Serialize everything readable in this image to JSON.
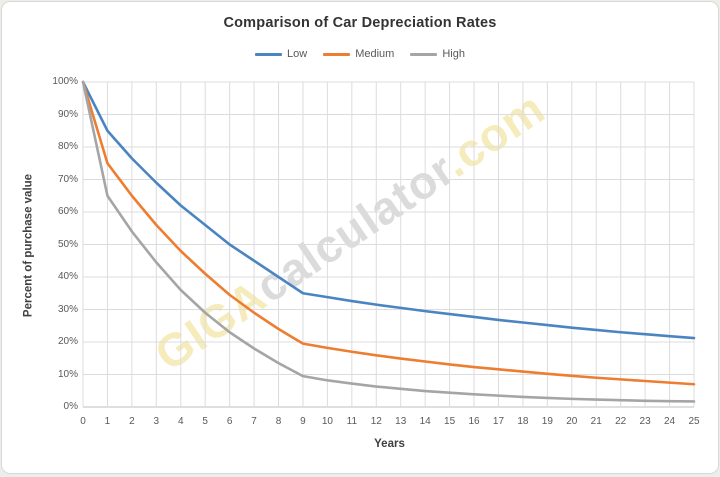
{
  "chart": {
    "title": "Comparison of Car Depreciation Rates",
    "x_axis_title": "Years",
    "y_axis_title": "Percent of purchase value"
  },
  "watermark": {
    "part1": "GIGA",
    "part2": "calculator",
    "part3": ".com"
  },
  "chart_data": {
    "type": "line",
    "title": "Comparison of Car Depreciation Rates",
    "xlabel": "Years",
    "ylabel": "Percent of purchase value",
    "xlim": [
      0,
      25
    ],
    "ylim": [
      0,
      100
    ],
    "grid": true,
    "legend_position": "top",
    "x": [
      0,
      1,
      2,
      3,
      4,
      5,
      6,
      7,
      8,
      9,
      10,
      11,
      12,
      13,
      14,
      15,
      16,
      17,
      18,
      19,
      20,
      21,
      22,
      23,
      24,
      25
    ],
    "x_tick_labels": [
      "0",
      "1",
      "2",
      "3",
      "4",
      "5",
      "6",
      "7",
      "8",
      "9",
      "10",
      "11",
      "12",
      "13",
      "14",
      "15",
      "16",
      "17",
      "18",
      "19",
      "20",
      "21",
      "22",
      "23",
      "24",
      "25"
    ],
    "y_ticks": [
      0,
      10,
      20,
      30,
      40,
      50,
      60,
      70,
      80,
      90,
      100
    ],
    "y_tick_labels": [
      "0%",
      "10%",
      "20%",
      "30%",
      "40%",
      "50%",
      "60%",
      "70%",
      "80%",
      "90%",
      "100%"
    ],
    "series": [
      {
        "name": "Low",
        "color": "#4A85C2",
        "values": [
          100,
          85,
          76.5,
          69,
          62,
          56,
          50,
          45,
          40,
          35,
          33.8,
          32.6,
          31.5,
          30.5,
          29.5,
          28.6,
          27.7,
          26.8,
          26,
          25.2,
          24.4,
          23.7,
          23,
          22.4,
          21.8,
          21.2
        ]
      },
      {
        "name": "Medium",
        "color": "#ED7D31",
        "values": [
          100,
          75,
          65,
          56,
          48,
          41,
          34.5,
          29,
          24,
          19.5,
          18.2,
          17,
          15.9,
          14.9,
          14,
          13.1,
          12.3,
          11.6,
          10.9,
          10.2,
          9.6,
          9,
          8.5,
          8,
          7.5,
          7
        ]
      },
      {
        "name": "High",
        "color": "#A5A5A5",
        "values": [
          100,
          65,
          54,
          44.5,
          36,
          29,
          23,
          18,
          13.5,
          9.5,
          8.2,
          7.2,
          6.3,
          5.6,
          4.9,
          4.4,
          3.9,
          3.5,
          3.1,
          2.8,
          2.5,
          2.3,
          2.1,
          1.9,
          1.8,
          1.7
        ]
      }
    ],
    "plot_colors": {
      "gridline": "#dcdcdc",
      "axis_line": "#bfbfbf"
    }
  }
}
